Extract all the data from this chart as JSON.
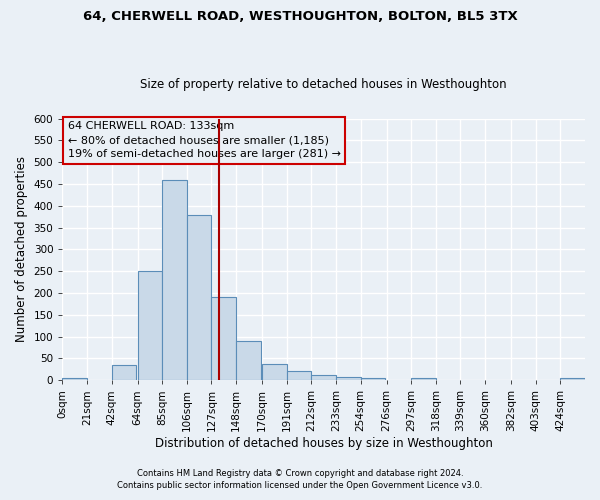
{
  "title": "64, CHERWELL ROAD, WESTHOUGHTON, BOLTON, BL5 3TX",
  "subtitle": "Size of property relative to detached houses in Westhoughton",
  "xlabel": "Distribution of detached houses by size in Westhoughton",
  "ylabel": "Number of detached properties",
  "bar_labels": [
    "0sqm",
    "21sqm",
    "42sqm",
    "64sqm",
    "85sqm",
    "106sqm",
    "127sqm",
    "148sqm",
    "170sqm",
    "191sqm",
    "212sqm",
    "233sqm",
    "254sqm",
    "276sqm",
    "297sqm",
    "318sqm",
    "339sqm",
    "360sqm",
    "382sqm",
    "403sqm",
    "424sqm"
  ],
  "bar_values": [
    5,
    0,
    35,
    250,
    460,
    380,
    190,
    90,
    37,
    22,
    13,
    8,
    6,
    0,
    5,
    0,
    0,
    0,
    0,
    0,
    5
  ],
  "bar_color": "#c9d9e8",
  "bar_edge_color": "#5b8db8",
  "ylim": [
    0,
    600
  ],
  "yticks": [
    0,
    50,
    100,
    150,
    200,
    250,
    300,
    350,
    400,
    450,
    500,
    550,
    600
  ],
  "vline_x": 133,
  "vline_color": "#aa0000",
  "annotation_text": "64 CHERWELL ROAD: 133sqm\n← 80% of detached houses are smaller (1,185)\n19% of semi-detached houses are larger (281) →",
  "annotation_box_color": "#cc0000",
  "footer_line1": "Contains HM Land Registry data © Crown copyright and database right 2024.",
  "footer_line2": "Contains public sector information licensed under the Open Government Licence v3.0.",
  "bg_color": "#eaf0f6",
  "grid_color": "#ffffff",
  "bin_width": 21
}
